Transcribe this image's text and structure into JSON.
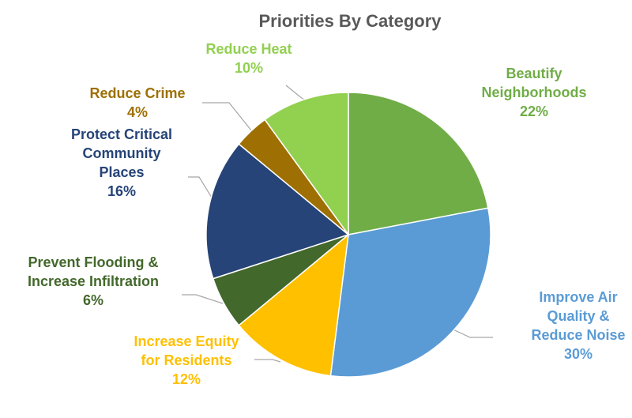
{
  "chart_data": {
    "type": "pie",
    "title": "Priorities By Category",
    "slices": [
      {
        "label_lines": [
          "Beautify",
          "Neighborhoods"
        ],
        "value": 22,
        "pct_label": "22%",
        "color": "#70AD47"
      },
      {
        "label_lines": [
          "Improve Air",
          "Quality &",
          "Reduce Noise"
        ],
        "value": 30,
        "pct_label": "30%",
        "color": "#5B9BD5"
      },
      {
        "label_lines": [
          "Increase Equity",
          "for Residents"
        ],
        "value": 12,
        "pct_label": "12%",
        "color": "#FFC000"
      },
      {
        "label_lines": [
          "Prevent Flooding &",
          "Increase Infiltration"
        ],
        "value": 6,
        "pct_label": "6%",
        "color": "#43682B"
      },
      {
        "label_lines": [
          "Protect Critical",
          "Community",
          "Places"
        ],
        "value": 16,
        "pct_label": "16%",
        "color": "#264478"
      },
      {
        "label_lines": [
          "Reduce Crime"
        ],
        "value": 4,
        "pct_label": "4%",
        "color": "#9E7003"
      },
      {
        "label_lines": [
          "Reduce Heat"
        ],
        "value": 10,
        "pct_label": "10%",
        "color": "#92D050"
      }
    ],
    "label_colors": [
      "#70AD47",
      "#5B9BD5",
      "#FFC000",
      "#43682B",
      "#264478",
      "#9E7003",
      "#92D050"
    ],
    "start_angle": "12 o'clock",
    "direction": "clockwise",
    "legend": "none",
    "leader_lines": true,
    "leader_color": "#A6A6A6"
  }
}
